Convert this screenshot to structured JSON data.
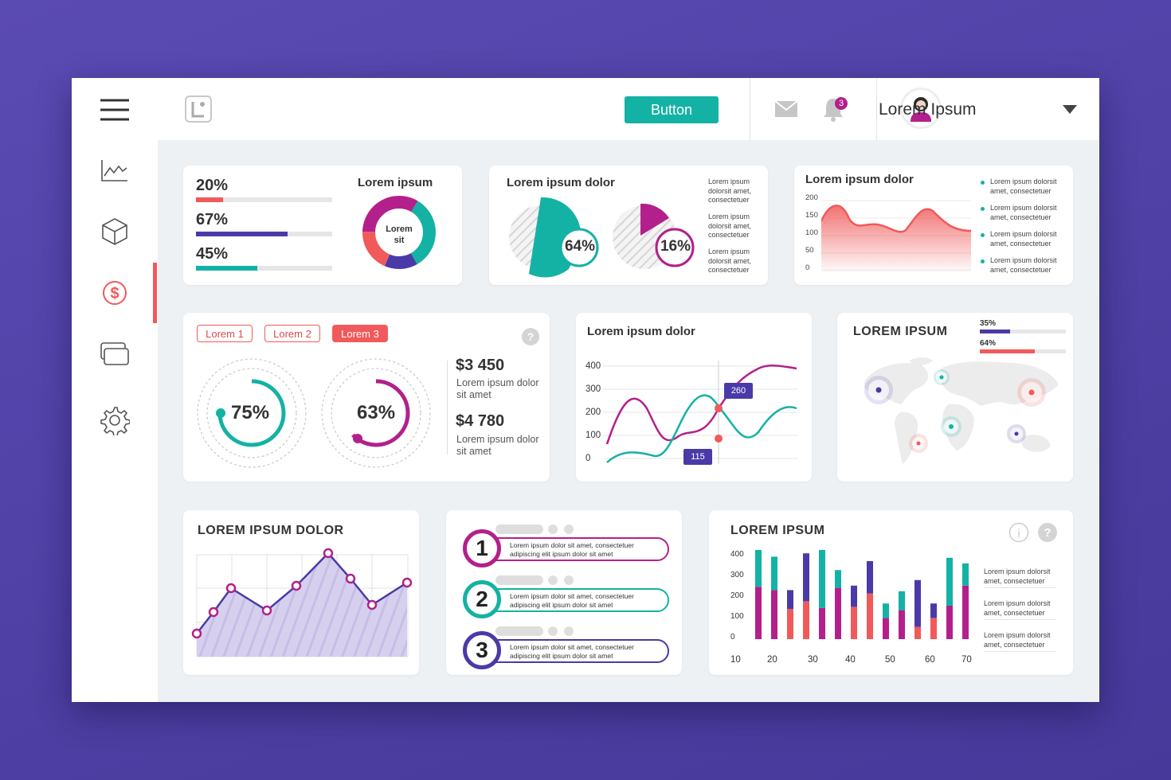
{
  "header": {
    "button_label": "Button",
    "notification_count": "3",
    "username": "Lorem Ipsum"
  },
  "sidebar": {
    "items": [
      {
        "icon": "chart-line-icon"
      },
      {
        "icon": "cube-icon"
      },
      {
        "icon": "dollar-icon",
        "active": true
      },
      {
        "icon": "cards-icon"
      },
      {
        "icon": "gear-icon"
      }
    ]
  },
  "progress_card": {
    "bars": [
      {
        "label": "20%",
        "value": 20,
        "color": "#f05a5a"
      },
      {
        "label": "67%",
        "value": 67,
        "color": "#4a3aa8"
      },
      {
        "label": "45%",
        "value": 45,
        "color": "#14b2a4"
      }
    ],
    "title": "Lorem ipsum",
    "donut_label_1": "Lorem",
    "donut_label_2": "sit"
  },
  "pie_card": {
    "title": "Lorem ipsum dolor",
    "pie1_label": "64%",
    "pie2_label": "16%",
    "legend": [
      [
        "Lorem ipsum",
        "dolorsit amet,",
        "consectetuer"
      ],
      [
        "Lorem ipsum",
        "dolorsit amet,",
        "consectetuer"
      ],
      [
        "Lorem ipsum",
        "dolorsit amet,",
        "consectetuer"
      ]
    ]
  },
  "area_card": {
    "title": "Lorem ipsum dolor",
    "y_ticks": [
      "200",
      "150",
      "100",
      "50",
      "0"
    ],
    "legend": [
      [
        "Lorem ipsum dolorsit",
        "amet, consectetuer"
      ],
      [
        "Lorem ipsum dolorsit",
        "amet, consectetuer"
      ],
      [
        "Lorem ipsum dolorsit",
        "amet, consectetuer"
      ],
      [
        "Lorem ipsum dolorsit",
        "amet, consectetuer"
      ]
    ],
    "colors": {
      "line": "#f05a5a"
    }
  },
  "gauge_card": {
    "tabs": [
      "Lorem 1",
      "Lorem 2",
      "Lorem 3"
    ],
    "gauge1": {
      "label": "75%",
      "value": 75,
      "color": "#14b2a4"
    },
    "gauge2": {
      "label": "63%",
      "value": 63,
      "color": "#b3208b"
    },
    "stat1_value": "$3 450",
    "stat1_desc_1": "Lorem ipsum dolor",
    "stat1_desc_2": "sit amet",
    "stat2_value": "$4 780",
    "stat2_desc_1": "Lorem ipsum dolor",
    "stat2_desc_2": "sit amet"
  },
  "line_card": {
    "title": "Lorem ipsum dolor",
    "y_ticks": [
      "400",
      "300",
      "200",
      "100",
      "0"
    ],
    "callout_high": "260",
    "callout_low": "115",
    "colors": {
      "series_a": "#b3208b",
      "series_b": "#14b2a4"
    }
  },
  "map_card": {
    "title": "LOREM IPSUM",
    "bars": [
      {
        "label": "35%",
        "value": 35,
        "color": "#4a3aa8"
      },
      {
        "label": "64%",
        "value": 64,
        "color": "#f05a5a"
      }
    ]
  },
  "purple_area_card": {
    "title": "LOREM IPSUM DOLOR"
  },
  "steps_card": {
    "steps": [
      {
        "number": "1",
        "line1": "Lorem ipsum dolor sit amet, consectetuer",
        "line2": "adipiscing elit ipsum dolor sit amet",
        "color": "#b3208b"
      },
      {
        "number": "2",
        "line1": "Lorem ipsum dolor sit amet, consectetuer",
        "line2": "adipiscing elit ipsum dolor sit amet",
        "color": "#14b2a4"
      },
      {
        "number": "3",
        "line1": "Lorem ipsum dolor sit amet, consectetuer",
        "line2": "adipiscing elit ipsum dolor sit amet",
        "color": "#4a3aa8"
      }
    ]
  },
  "bar_card": {
    "title": "LOREM IPSUM",
    "chart_data": {
      "type": "bar",
      "stacked": true,
      "y_ticks": [
        "400",
        "300",
        "200",
        "100",
        "0"
      ],
      "x_ticks": [
        "10",
        "20",
        "30",
        "40",
        "50",
        "60",
        "70"
      ],
      "ylim": [
        0,
        400
      ],
      "series": [
        {
          "color": "#b3208b",
          "values": [
            230,
            0,
            0,
            0,
            0,
            0,
            0,
            0,
            0,
            0,
            0,
            0,
            0
          ]
        },
        {
          "color": "#14b2a4",
          "values": [
            0,
            0,
            0,
            0,
            0,
            0,
            0,
            0,
            0,
            0,
            0,
            0,
            0
          ]
        }
      ],
      "bars": [
        [
          {
            "c": "#b3208b",
            "v": 235
          },
          {
            "c": "#14b2a4",
            "v": 180
          }
        ],
        [
          {
            "c": "#b3208b",
            "v": 220
          },
          {
            "c": "#14b2a4",
            "v": 150
          }
        ],
        [
          {
            "c": "#f05a5a",
            "v": 135
          },
          {
            "c": "#4a3aa8",
            "v": 85
          }
        ],
        [
          {
            "c": "#f05a5a",
            "v": 170
          },
          {
            "c": "#4a3aa8",
            "v": 215
          }
        ],
        [
          {
            "c": "#b3208b",
            "v": 140
          },
          {
            "c": "#14b2a4",
            "v": 280
          }
        ],
        [
          {
            "c": "#b3208b",
            "v": 230
          },
          {
            "c": "#14b2a4",
            "v": 80
          }
        ],
        [
          {
            "c": "#f05a5a",
            "v": 145
          },
          {
            "c": "#4a3aa8",
            "v": 95
          }
        ],
        [
          {
            "c": "#f05a5a",
            "v": 205
          },
          {
            "c": "#4a3aa8",
            "v": 145
          }
        ],
        [
          {
            "c": "#b3208b",
            "v": 95
          },
          {
            "c": "#14b2a4",
            "v": 65
          }
        ],
        [
          {
            "c": "#b3208b",
            "v": 130
          },
          {
            "c": "#14b2a4",
            "v": 85
          }
        ],
        [
          {
            "c": "#f05a5a",
            "v": 55
          },
          {
            "c": "#4a3aa8",
            "v": 210
          }
        ],
        [
          {
            "c": "#f05a5a",
            "v": 95
          },
          {
            "c": "#4a3aa8",
            "v": 65
          }
        ],
        [
          {
            "c": "#b3208b",
            "v": 150
          },
          {
            "c": "#14b2a4",
            "v": 215
          }
        ],
        [
          {
            "c": "#b3208b",
            "v": 240
          },
          {
            "c": "#14b2a4",
            "v": 100
          }
        ]
      ]
    },
    "legend": [
      [
        "Lorem ipsum dolorsit",
        "amet, consectetuer"
      ],
      [
        "Lorem ipsum dolorsit",
        "amet, consectetuer"
      ],
      [
        "Lorem ipsum dolorsit",
        "amet, consectetuer"
      ]
    ]
  }
}
